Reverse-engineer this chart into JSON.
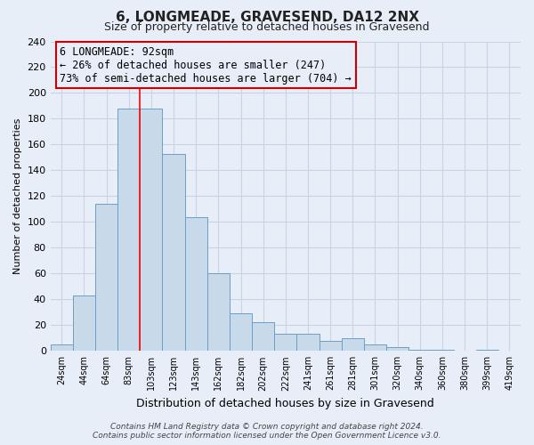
{
  "title": "6, LONGMEADE, GRAVESEND, DA12 2NX",
  "subtitle": "Size of property relative to detached houses in Gravesend",
  "xlabel": "Distribution of detached houses by size in Gravesend",
  "ylabel": "Number of detached properties",
  "bar_labels": [
    "24sqm",
    "44sqm",
    "64sqm",
    "83sqm",
    "103sqm",
    "123sqm",
    "143sqm",
    "162sqm",
    "182sqm",
    "202sqm",
    "222sqm",
    "241sqm",
    "261sqm",
    "281sqm",
    "301sqm",
    "320sqm",
    "340sqm",
    "360sqm",
    "380sqm",
    "399sqm",
    "419sqm"
  ],
  "bar_values": [
    5,
    43,
    114,
    188,
    188,
    153,
    104,
    60,
    29,
    22,
    13,
    13,
    8,
    10,
    5,
    3,
    1,
    1,
    0,
    1,
    0
  ],
  "bar_color": "#c8daea",
  "bar_edge_color": "#6a9fc8",
  "red_line_x": 3.5,
  "annotation_line1": "6 LONGMEADE: 92sqm",
  "annotation_line2": "← 26% of detached houses are smaller (247)",
  "annotation_line3": "73% of semi-detached houses are larger (704) →",
  "annotation_box_color": "#cc0000",
  "ylim": [
    0,
    240
  ],
  "yticks": [
    0,
    20,
    40,
    60,
    80,
    100,
    120,
    140,
    160,
    180,
    200,
    220,
    240
  ],
  "grid_color": "#c8d4e4",
  "bg_color": "#e8eef8",
  "footer_line1": "Contains HM Land Registry data © Crown copyright and database right 2024.",
  "footer_line2": "Contains public sector information licensed under the Open Government Licence v3.0."
}
